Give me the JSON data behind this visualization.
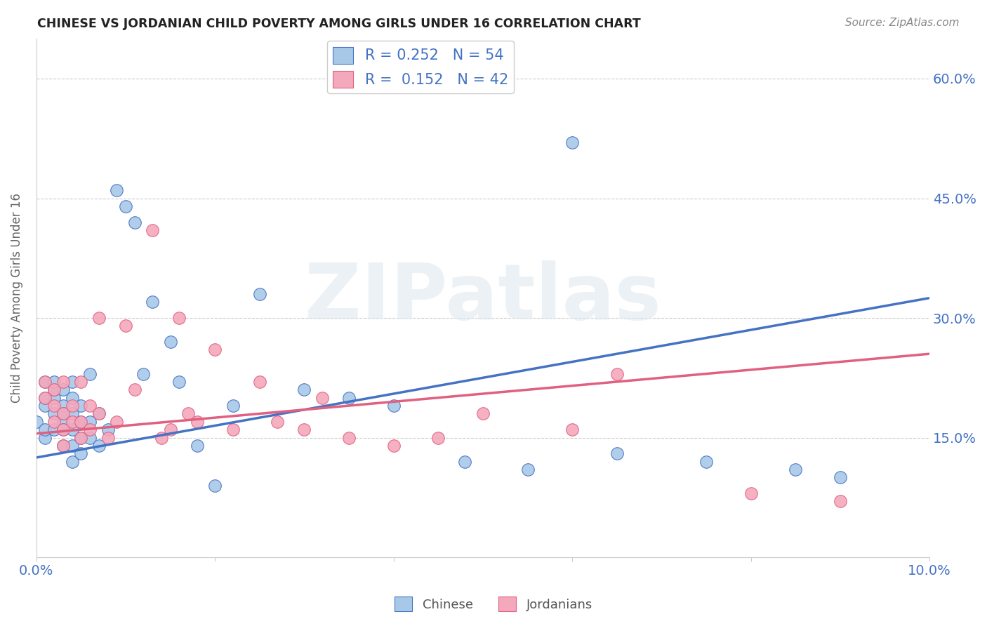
{
  "title": "CHINESE VS JORDANIAN CHILD POVERTY AMONG GIRLS UNDER 16 CORRELATION CHART",
  "source": "Source: ZipAtlas.com",
  "ylabel": "Child Poverty Among Girls Under 16",
  "watermark": "ZIPatlas",
  "legend_r_chinese": "0.252",
  "legend_n_chinese": "54",
  "legend_r_jordanian": "0.152",
  "legend_n_jordanian": "42",
  "xlim": [
    0.0,
    0.1
  ],
  "ylim": [
    0.0,
    0.65
  ],
  "right_yticks": [
    0.15,
    0.3,
    0.45,
    0.6
  ],
  "right_yticklabels": [
    "15.0%",
    "30.0%",
    "45.0%",
    "60.0%"
  ],
  "xtick_vals": [
    0.0,
    0.02,
    0.04,
    0.06,
    0.08,
    0.1
  ],
  "xticklabels": [
    "0.0%",
    "",
    "",
    "",
    "",
    "10.0%"
  ],
  "chinese_color": "#a8c8e8",
  "jordanian_color": "#f4a8bc",
  "chinese_line_color": "#4472c4",
  "jordanian_line_color": "#e06080",
  "background_color": "#ffffff",
  "grid_color": "#cccccc",
  "reg_line_chinese": [
    0.0,
    0.1,
    0.125,
    0.325
  ],
  "reg_line_jordanian": [
    0.0,
    0.1,
    0.155,
    0.255
  ],
  "chinese_x": [
    0.0,
    0.001,
    0.001,
    0.001,
    0.001,
    0.001,
    0.002,
    0.002,
    0.002,
    0.002,
    0.002,
    0.003,
    0.003,
    0.003,
    0.003,
    0.003,
    0.003,
    0.004,
    0.004,
    0.004,
    0.004,
    0.004,
    0.004,
    0.005,
    0.005,
    0.005,
    0.005,
    0.006,
    0.006,
    0.006,
    0.007,
    0.007,
    0.008,
    0.009,
    0.01,
    0.011,
    0.012,
    0.013,
    0.015,
    0.016,
    0.018,
    0.02,
    0.022,
    0.025,
    0.03,
    0.035,
    0.04,
    0.048,
    0.055,
    0.06,
    0.065,
    0.075,
    0.085,
    0.09
  ],
  "chinese_y": [
    0.17,
    0.19,
    0.2,
    0.22,
    0.15,
    0.16,
    0.2,
    0.18,
    0.21,
    0.16,
    0.22,
    0.19,
    0.17,
    0.21,
    0.18,
    0.16,
    0.14,
    0.2,
    0.18,
    0.22,
    0.16,
    0.14,
    0.12,
    0.19,
    0.17,
    0.15,
    0.13,
    0.17,
    0.15,
    0.23,
    0.18,
    0.14,
    0.16,
    0.46,
    0.44,
    0.42,
    0.23,
    0.32,
    0.27,
    0.22,
    0.14,
    0.09,
    0.19,
    0.33,
    0.21,
    0.2,
    0.19,
    0.12,
    0.11,
    0.52,
    0.13,
    0.12,
    0.11,
    0.1
  ],
  "jordanian_x": [
    0.001,
    0.001,
    0.002,
    0.002,
    0.002,
    0.003,
    0.003,
    0.003,
    0.003,
    0.004,
    0.004,
    0.005,
    0.005,
    0.005,
    0.006,
    0.006,
    0.007,
    0.007,
    0.008,
    0.009,
    0.01,
    0.011,
    0.013,
    0.014,
    0.015,
    0.016,
    0.017,
    0.018,
    0.02,
    0.022,
    0.025,
    0.027,
    0.03,
    0.032,
    0.035,
    0.04,
    0.045,
    0.05,
    0.06,
    0.065,
    0.08,
    0.09
  ],
  "jordanian_y": [
    0.2,
    0.22,
    0.19,
    0.21,
    0.17,
    0.18,
    0.16,
    0.14,
    0.22,
    0.17,
    0.19,
    0.15,
    0.17,
    0.22,
    0.19,
    0.16,
    0.3,
    0.18,
    0.15,
    0.17,
    0.29,
    0.21,
    0.41,
    0.15,
    0.16,
    0.3,
    0.18,
    0.17,
    0.26,
    0.16,
    0.22,
    0.17,
    0.16,
    0.2,
    0.15,
    0.14,
    0.15,
    0.18,
    0.16,
    0.23,
    0.08,
    0.07
  ]
}
